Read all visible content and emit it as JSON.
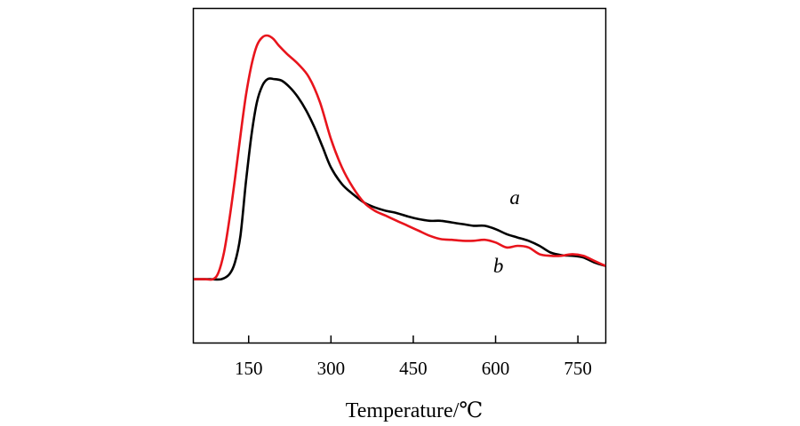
{
  "chart_data": {
    "type": "line",
    "title": "",
    "xlabel": "Temperature/℃",
    "ylabel": "",
    "xlim": [
      50,
      800
    ],
    "ylim": [
      0,
      100
    ],
    "xticks": [
      150,
      300,
      450,
      600,
      750
    ],
    "xtick_labels": [
      "150",
      "300",
      "450",
      "600",
      "750"
    ],
    "grid": false,
    "series": [
      {
        "name": "a",
        "color": "#000000",
        "x": [
          50,
          80,
          100,
          115,
          125,
          135,
          145,
          155,
          165,
          175,
          185,
          195,
          210,
          225,
          240,
          255,
          270,
          285,
          300,
          320,
          340,
          360,
          380,
          400,
          420,
          440,
          460,
          480,
          500,
          520,
          540,
          560,
          580,
          600,
          620,
          640,
          660,
          680,
          700,
          720,
          740,
          760,
          780,
          800
        ],
        "y": [
          19,
          19,
          19,
          20.5,
          24,
          32,
          48,
          62,
          72,
          77,
          79,
          79,
          78.5,
          76.5,
          73.5,
          69.5,
          64.5,
          58.5,
          52.5,
          47.5,
          44.5,
          42,
          40.5,
          39.5,
          38.8,
          37.8,
          37,
          36.5,
          36.5,
          36,
          35.5,
          35,
          35,
          34,
          32.5,
          31.5,
          30.5,
          29,
          27,
          26.2,
          26,
          25.5,
          24,
          23
        ]
      },
      {
        "name": "b",
        "color": "#e8141c",
        "x": [
          50,
          70,
          85,
          95,
          105,
          115,
          125,
          135,
          145,
          155,
          165,
          175,
          185,
          195,
          205,
          220,
          240,
          260,
          280,
          300,
          320,
          340,
          360,
          380,
          400,
          420,
          440,
          460,
          480,
          500,
          520,
          540,
          560,
          580,
          600,
          620,
          640,
          660,
          680,
          700,
          720,
          740,
          760,
          780,
          800
        ],
        "y": [
          19,
          19,
          19,
          21,
          27,
          37,
          49,
          62,
          74,
          83,
          89,
          91.5,
          92,
          91,
          89,
          86.5,
          83.5,
          79.5,
          72,
          61,
          52.5,
          46.5,
          42,
          39.5,
          38,
          36.5,
          35,
          33.5,
          32,
          31,
          30.8,
          30.5,
          30.5,
          30.8,
          30,
          28.5,
          29,
          28.5,
          26.5,
          26,
          26,
          26.5,
          26,
          24.5,
          23
        ]
      }
    ],
    "annotations": [
      {
        "text": "a",
        "x": 635,
        "y": 41.5
      },
      {
        "text": "b",
        "x": 605,
        "y": 21
      }
    ]
  }
}
